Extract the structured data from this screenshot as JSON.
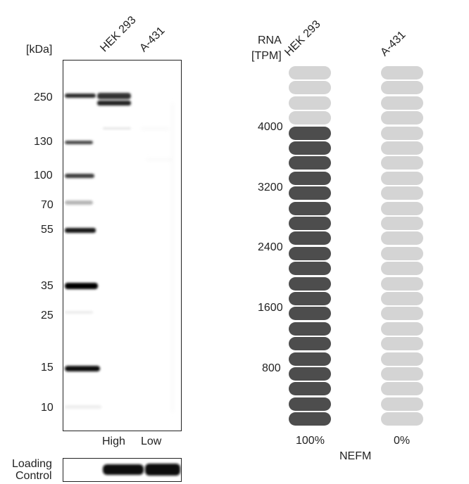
{
  "blot": {
    "unit_label": "[kDa]",
    "lanes": [
      "HEK 293",
      "A-431"
    ],
    "markers": [
      "250",
      "130",
      "100",
      "70",
      "55",
      "35",
      "25",
      "15",
      "10"
    ],
    "levels": [
      "High",
      "Low"
    ],
    "loading_label_1": "Loading",
    "loading_label_2": "Control"
  },
  "rna": {
    "header_1": "RNA",
    "header_2": "[TPM]",
    "columns": [
      "HEK 293",
      "A-431"
    ],
    "ticks": [
      "4000",
      "3200",
      "2400",
      "1600",
      "800"
    ],
    "percents": [
      "100%",
      "0%"
    ],
    "gene": "NEFM",
    "fill_fraction": [
      1.0,
      0.0
    ],
    "segments": 24,
    "highlight_segments_col1": 20,
    "colors": {
      "filled": "#4d4d4d",
      "empty": "#d4d4d4"
    }
  }
}
